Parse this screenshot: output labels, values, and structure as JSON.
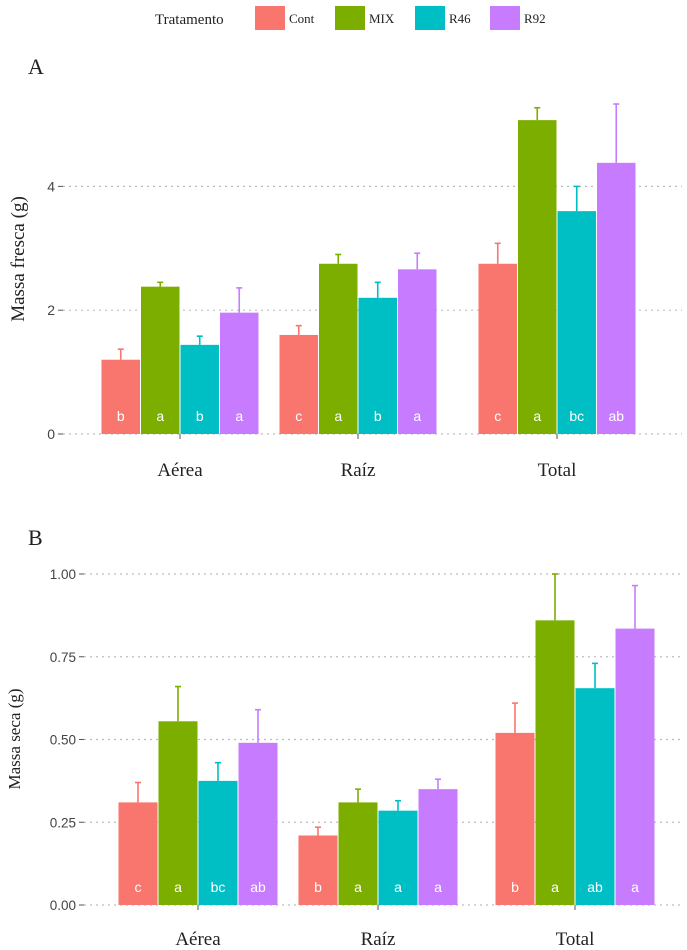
{
  "legend": {
    "title": "Tratamento",
    "items": [
      {
        "label": "Cont",
        "color": "#F8766D"
      },
      {
        "label": "MIX",
        "color": "#7CAE00"
      },
      {
        "label": "R46",
        "color": "#00BFC4"
      },
      {
        "label": "R92",
        "color": "#C77CFF"
      }
    ]
  },
  "chart_data": [
    {
      "type": "bar",
      "panel_label": "A",
      "ylabel": "Massa fresca (g)",
      "xlabel": "",
      "categories": [
        "Aérea",
        "Raíz",
        "Total"
      ],
      "ylim": [
        0,
        5.35
      ],
      "yticks": [
        0,
        2,
        4
      ],
      "ytick_labels": [
        "0",
        "2",
        "4"
      ],
      "grid": "horizontal dotted",
      "series": [
        {
          "name": "Cont",
          "values": [
            1.2,
            1.6,
            2.75
          ],
          "errors": [
            0.17,
            0.15,
            0.33
          ],
          "letters": [
            "b",
            "c",
            "c"
          ]
        },
        {
          "name": "MIX",
          "values": [
            2.38,
            2.75,
            5.07
          ],
          "errors": [
            0.07,
            0.15,
            0.2
          ],
          "letters": [
            "a",
            "a",
            "a"
          ]
        },
        {
          "name": "R46",
          "values": [
            1.44,
            2.2,
            3.6
          ],
          "errors": [
            0.14,
            0.25,
            0.4
          ],
          "letters": [
            "b",
            "b",
            "bc"
          ]
        },
        {
          "name": "R92",
          "values": [
            1.96,
            2.66,
            4.38
          ],
          "errors": [
            0.4,
            0.26,
            0.95
          ],
          "letters": [
            "a",
            "a",
            "ab"
          ]
        }
      ]
    },
    {
      "type": "bar",
      "panel_label": "B",
      "ylabel": "Massa seca (g)",
      "xlabel": "",
      "categories": [
        "Aérea",
        "Raíz",
        "Total"
      ],
      "ylim": [
        0,
        1.0
      ],
      "yticks": [
        0,
        0.25,
        0.5,
        0.75,
        1.0
      ],
      "ytick_labels": [
        "0.00",
        "0.25",
        "0.50",
        "0.75",
        "1.00"
      ],
      "grid": "horizontal dotted",
      "series": [
        {
          "name": "Cont",
          "values": [
            0.31,
            0.21,
            0.52
          ],
          "errors": [
            0.06,
            0.025,
            0.09
          ],
          "letters": [
            "c",
            "b",
            "b"
          ]
        },
        {
          "name": "MIX",
          "values": [
            0.555,
            0.31,
            0.86
          ],
          "errors": [
            0.105,
            0.04,
            0.14
          ],
          "letters": [
            "a",
            "a",
            "a"
          ]
        },
        {
          "name": "R46",
          "values": [
            0.375,
            0.285,
            0.655
          ],
          "errors": [
            0.055,
            0.03,
            0.075
          ],
          "letters": [
            "bc",
            "a",
            "ab"
          ]
        },
        {
          "name": "R92",
          "values": [
            0.49,
            0.35,
            0.835
          ],
          "errors": [
            0.1,
            0.03,
            0.13
          ],
          "letters": [
            "ab",
            "a",
            "a"
          ]
        }
      ]
    }
  ]
}
